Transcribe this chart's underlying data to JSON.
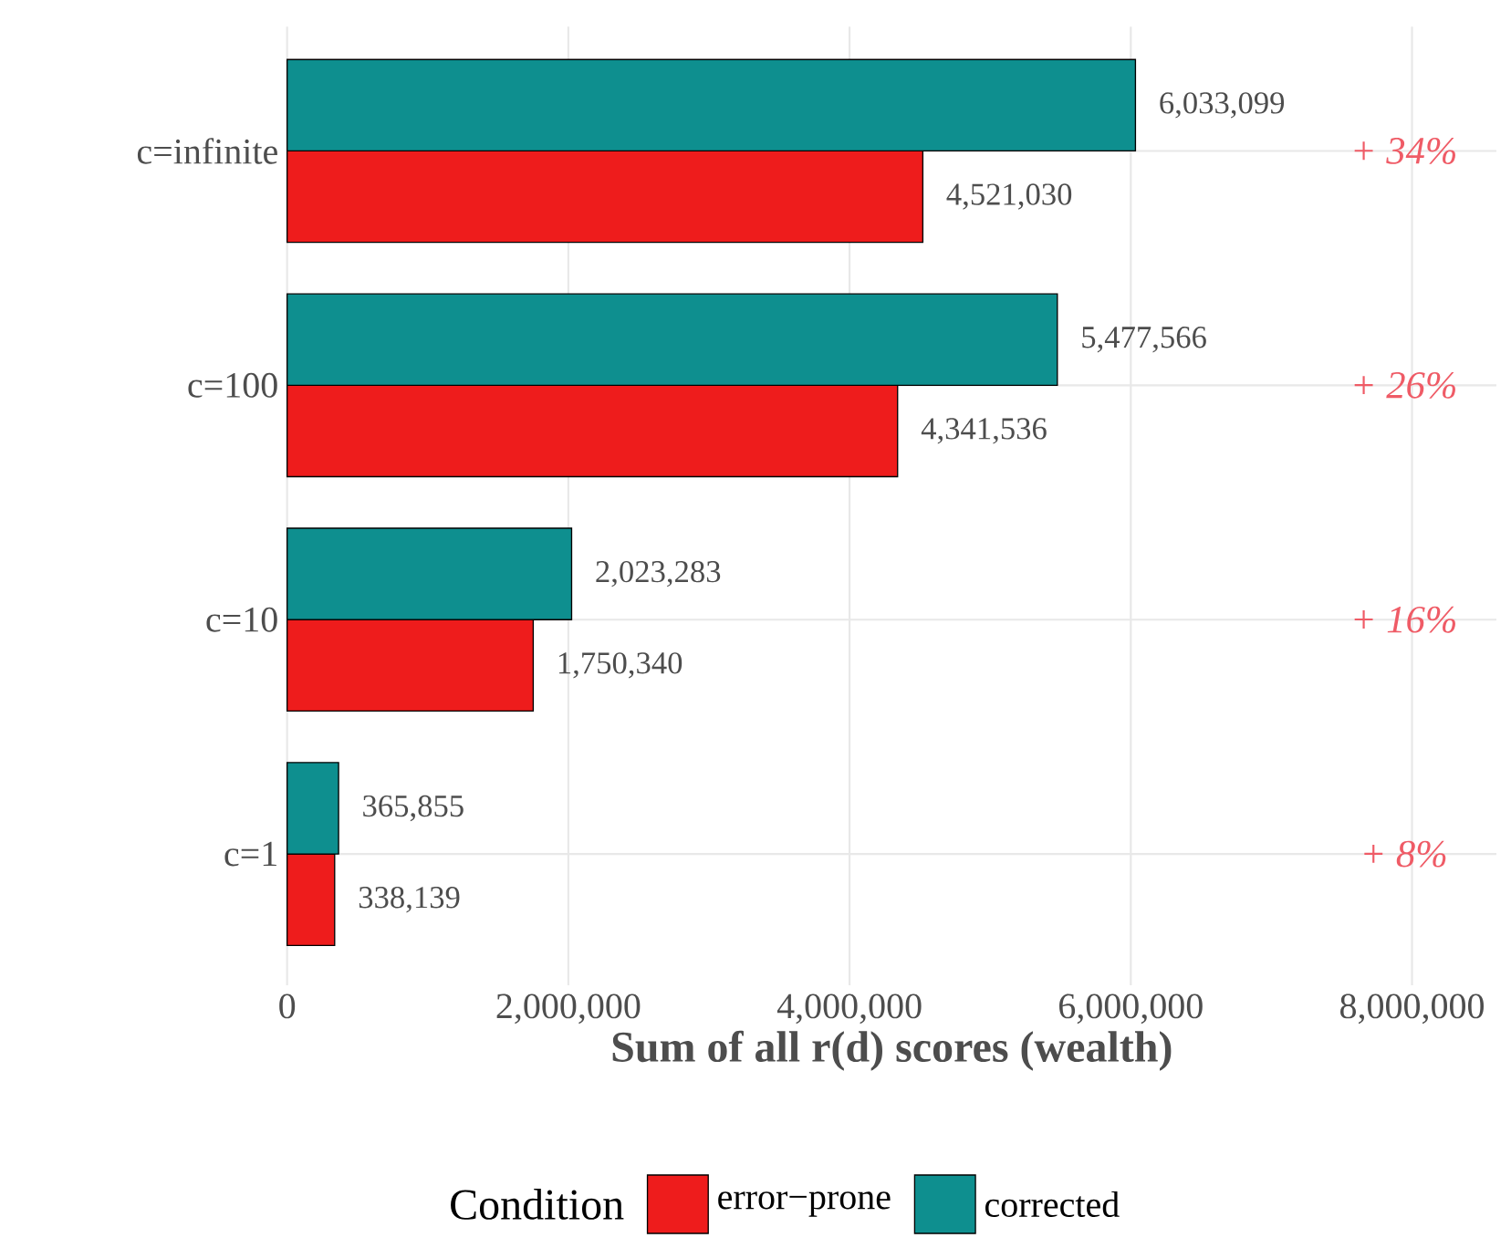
{
  "chart_data": {
    "type": "bar",
    "orientation": "horizontal",
    "xlabel": "**Sum of all r(d) scores (wealth)**",
    "legend_title": "Condition",
    "categories": [
      "c=infinite",
      "c=100",
      "c=10",
      "c=1"
    ],
    "series": [
      {
        "name": "error−prone",
        "color": "#ee1c1c",
        "values": [
          4521030,
          4341536,
          1750340,
          338139
        ],
        "value_labels": [
          "4,521,030",
          "4,341,536",
          "1,750,340",
          "338,139"
        ]
      },
      {
        "name": "corrected",
        "color": "#0e8f8f",
        "values": [
          6033099,
          5477566,
          2023283,
          365855
        ],
        "value_labels": [
          "6,033,099",
          "5,477,566",
          "2,023,283",
          "365,855"
        ]
      }
    ],
    "xlim": [
      0,
      8600000
    ],
    "xticks": [
      0,
      {
        "value": 2000000,
        "label": "2,000,000"
      },
      {
        "value": 4000000,
        "label": "4,000,000"
      },
      {
        "value": 6000000,
        "label": "6,000,000"
      },
      {
        "value": 8000000,
        "label": "8,000,000"
      }
    ],
    "annotations": [
      "*+ 34%*",
      "*+ 26%*",
      "*+ 16%*",
      "*+ 8%*"
    ],
    "grid": true,
    "legend": "bottom"
  }
}
